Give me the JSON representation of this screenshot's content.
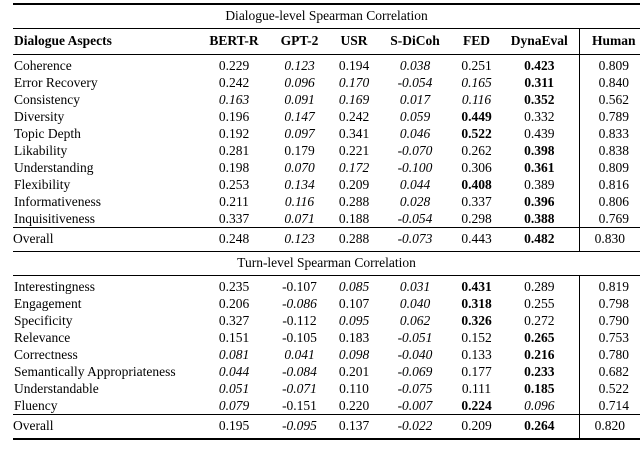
{
  "page": {
    "background_color": "#ffffff",
    "text_color": "#000000"
  },
  "table": {
    "columns": [
      "Dialogue Aspects",
      "BERT-R",
      "GPT-2",
      "USR",
      "S-DiCoh",
      "FED",
      "DynaEval",
      "Human"
    ],
    "style_legend": {
      "n": "normal",
      "i": "italic",
      "b": "bold"
    },
    "sections": [
      {
        "title": "Dialogue-level Spearman Correlation",
        "show_header": true,
        "rows": [
          {
            "aspect": "Coherence",
            "values": [
              "0.229",
              "0.123",
              "0.194",
              "0.038",
              "0.251",
              "0.423",
              "0.809"
            ],
            "styles": [
              "n",
              "i",
              "n",
              "i",
              "n",
              "b",
              "n"
            ]
          },
          {
            "aspect": "Error Recovery",
            "values": [
              "0.242",
              "0.096",
              "0.170",
              "-0.054",
              "0.165",
              "0.311",
              "0.840"
            ],
            "styles": [
              "n",
              "i",
              "i",
              "i",
              "i",
              "b",
              "n"
            ]
          },
          {
            "aspect": "Consistency",
            "values": [
              "0.163",
              "0.091",
              "0.169",
              "0.017",
              "0.116",
              "0.352",
              "0.562"
            ],
            "styles": [
              "i",
              "i",
              "i",
              "i",
              "i",
              "b",
              "n"
            ]
          },
          {
            "aspect": "Diversity",
            "values": [
              "0.196",
              "0.147",
              "0.242",
              "0.059",
              "0.449",
              "0.332",
              "0.789"
            ],
            "styles": [
              "n",
              "i",
              "n",
              "i",
              "b",
              "n",
              "n"
            ]
          },
          {
            "aspect": "Topic Depth",
            "values": [
              "0.192",
              "0.097",
              "0.341",
              "0.046",
              "0.522",
              "0.439",
              "0.833"
            ],
            "styles": [
              "n",
              "i",
              "n",
              "i",
              "b",
              "n",
              "n"
            ]
          },
          {
            "aspect": "Likability",
            "values": [
              "0.281",
              "0.179",
              "0.221",
              "-0.070",
              "0.262",
              "0.398",
              "0.838"
            ],
            "styles": [
              "n",
              "n",
              "n",
              "i",
              "n",
              "b",
              "n"
            ]
          },
          {
            "aspect": "Understanding",
            "values": [
              "0.198",
              "0.070",
              "0.172",
              "-0.100",
              "0.306",
              "0.361",
              "0.809"
            ],
            "styles": [
              "n",
              "i",
              "i",
              "i",
              "n",
              "b",
              "n"
            ]
          },
          {
            "aspect": "Flexibility",
            "values": [
              "0.253",
              "0.134",
              "0.209",
              "0.044",
              "0.408",
              "0.389",
              "0.816"
            ],
            "styles": [
              "n",
              "i",
              "n",
              "i",
              "b",
              "n",
              "n"
            ]
          },
          {
            "aspect": "Informativeness",
            "values": [
              "0.211",
              "0.116",
              "0.288",
              "0.028",
              "0.337",
              "0.396",
              "0.806"
            ],
            "styles": [
              "n",
              "i",
              "n",
              "i",
              "n",
              "b",
              "n"
            ]
          },
          {
            "aspect": "Inquisitiveness",
            "values": [
              "0.337",
              "0.071",
              "0.188",
              "-0.054",
              "0.298",
              "0.388",
              "0.769"
            ],
            "styles": [
              "n",
              "i",
              "n",
              "i",
              "n",
              "b",
              "n"
            ]
          }
        ],
        "overall": {
          "aspect": "Overall",
          "values": [
            "0.248",
            "0.123",
            "0.288",
            "-0.073",
            "0.443",
            "0.482",
            "0.830"
          ],
          "styles": [
            "n",
            "i",
            "n",
            "i",
            "n",
            "b",
            "n"
          ]
        }
      },
      {
        "title": "Turn-level Spearman Correlation",
        "show_header": false,
        "rows": [
          {
            "aspect": "Interestingness",
            "values": [
              "0.235",
              "-0.107",
              "0.085",
              "0.031",
              "0.431",
              "0.289",
              "0.819"
            ],
            "styles": [
              "n",
              "n",
              "i",
              "i",
              "b",
              "n",
              "n"
            ]
          },
          {
            "aspect": "Engagement",
            "values": [
              "0.206",
              "-0.086",
              "0.107",
              "0.040",
              "0.318",
              "0.255",
              "0.798"
            ],
            "styles": [
              "n",
              "i",
              "n",
              "i",
              "b",
              "n",
              "n"
            ]
          },
          {
            "aspect": "Specificity",
            "values": [
              "0.327",
              "-0.112",
              "0.095",
              "0.062",
              "0.326",
              "0.272",
              "0.790"
            ],
            "styles": [
              "n",
              "n",
              "i",
              "i",
              "b",
              "n",
              "n"
            ]
          },
          {
            "aspect": "Relevance",
            "values": [
              "0.151",
              "-0.105",
              "0.183",
              "-0.051",
              "0.152",
              "0.265",
              "0.753"
            ],
            "styles": [
              "n",
              "n",
              "n",
              "i",
              "n",
              "b",
              "n"
            ]
          },
          {
            "aspect": "Correctness",
            "values": [
              "0.081",
              "0.041",
              "0.098",
              "-0.040",
              "0.133",
              "0.216",
              "0.780"
            ],
            "styles": [
              "i",
              "i",
              "i",
              "i",
              "n",
              "b",
              "n"
            ]
          },
          {
            "aspect": "Semantically Appropriateness",
            "values": [
              "0.044",
              "-0.084",
              "0.201",
              "-0.069",
              "0.177",
              "0.233",
              "0.682"
            ],
            "styles": [
              "i",
              "i",
              "n",
              "i",
              "n",
              "b",
              "n"
            ]
          },
          {
            "aspect": "Understandable",
            "values": [
              "0.051",
              "-0.071",
              "0.110",
              "-0.075",
              "0.111",
              "0.185",
              "0.522"
            ],
            "styles": [
              "i",
              "i",
              "n",
              "i",
              "n",
              "b",
              "n"
            ]
          },
          {
            "aspect": "Fluency",
            "values": [
              "0.079",
              "-0.151",
              "0.220",
              "-0.007",
              "0.224",
              "0.096",
              "0.714"
            ],
            "styles": [
              "i",
              "n",
              "n",
              "i",
              "b",
              "i",
              "n"
            ]
          }
        ],
        "overall": {
          "aspect": "Overall",
          "values": [
            "0.195",
            "-0.095",
            "0.137",
            "-0.022",
            "0.209",
            "0.264",
            "0.820"
          ],
          "styles": [
            "n",
            "i",
            "n",
            "i",
            "n",
            "b",
            "n"
          ]
        }
      }
    ]
  }
}
